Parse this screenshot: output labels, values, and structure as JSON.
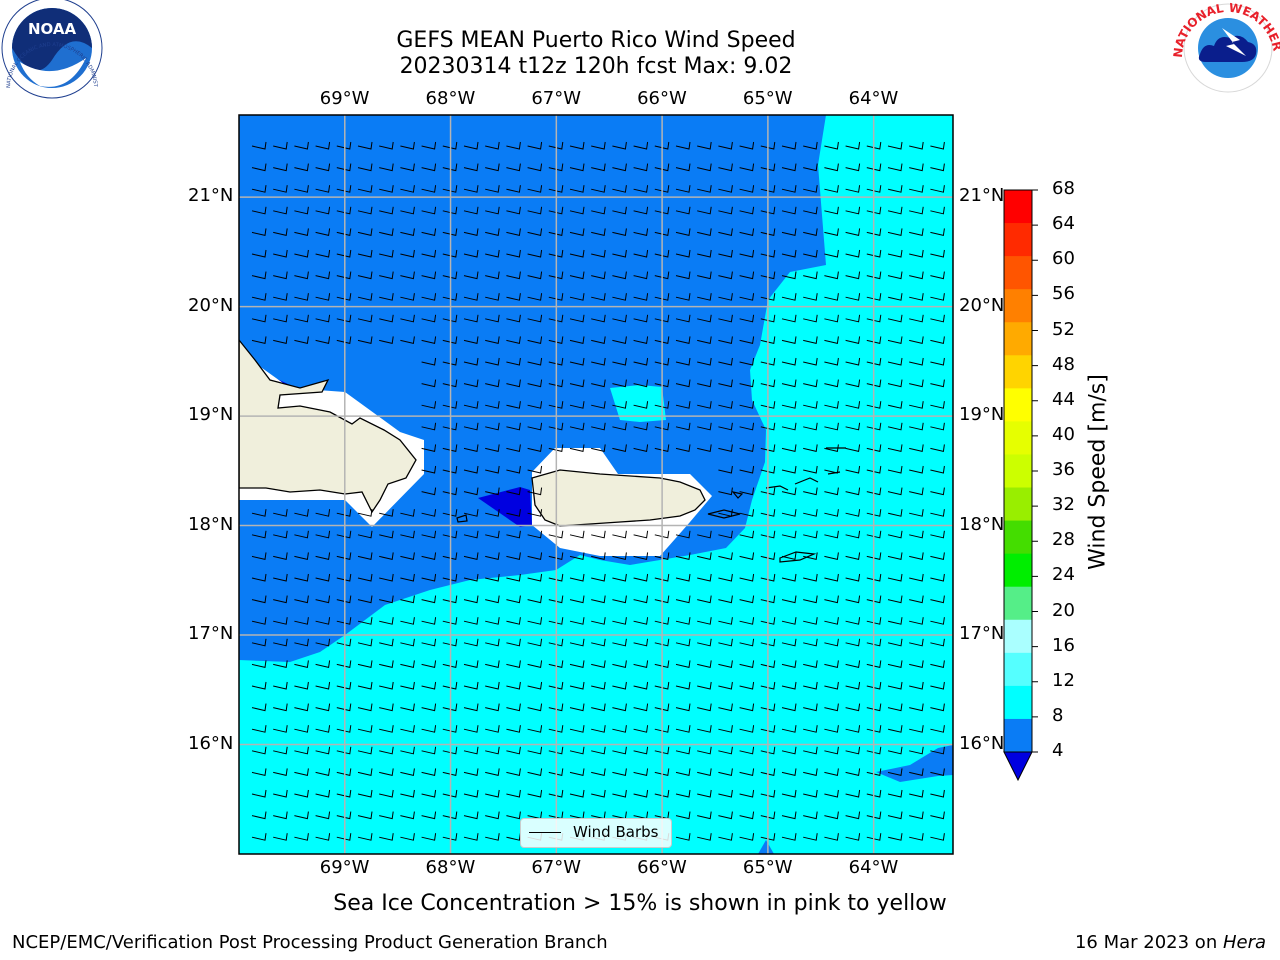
{
  "header": {
    "line1": "GEFS MEAN Puerto Rico Wind Speed",
    "line2": "20230314 t12z 120h fcst   Max: 9.02"
  },
  "map": {
    "lon_labels": [
      "69°W",
      "68°W",
      "67°W",
      "66°W",
      "65°W",
      "64°W"
    ],
    "lat_labels": [
      "21°N",
      "20°N",
      "19°N",
      "18°N",
      "17°N",
      "16°N"
    ],
    "lon_range": [
      -70.0,
      -63.25
    ],
    "lat_range": [
      15.0,
      21.75
    ],
    "fill_colors": {
      "sea_4_8": "#0a7cf5",
      "sea_8_12": "#00ffff",
      "sea_below_4": "#0000e0",
      "land": "#f0efdc",
      "gridline": "#b4b4b4"
    },
    "legend": {
      "label": "Wind Barbs"
    }
  },
  "colorbar": {
    "label": "Wind Speed [m/s]",
    "ticks": [
      "68",
      "64",
      "60",
      "56",
      "52",
      "48",
      "44",
      "40",
      "36",
      "32",
      "28",
      "24",
      "20",
      "16",
      "12",
      "8",
      "4"
    ],
    "colors": [
      "#ff0000",
      "#ff2a00",
      "#ff5500",
      "#ff8000",
      "#ffaa00",
      "#ffd400",
      "#ffff00",
      "#e6ff00",
      "#ccff00",
      "#99ee00",
      "#44dd00",
      "#00ee00",
      "#55ee88",
      "#aaffff",
      "#55ffff",
      "#00ffff",
      "#0a7cf5"
    ],
    "below_color": "#0000e0"
  },
  "logos": {
    "noaa_text": "NOAA",
    "noaa_ring": "NATIONAL OCEANIC AND ATMOSPHERIC ADMINISTRATION · U.S. DEPARTMENT OF COMMERCE",
    "nws_ring": "NATIONAL WEATHER SERVICE"
  },
  "notes": {
    "sea_ice": "Sea Ice Concentration > 15% is shown in pink to yellow",
    "branch": "NCEP/EMC/Verification Post Processing Product Generation Branch",
    "date": "16 Mar 2023 on ",
    "machine": "Hera"
  }
}
